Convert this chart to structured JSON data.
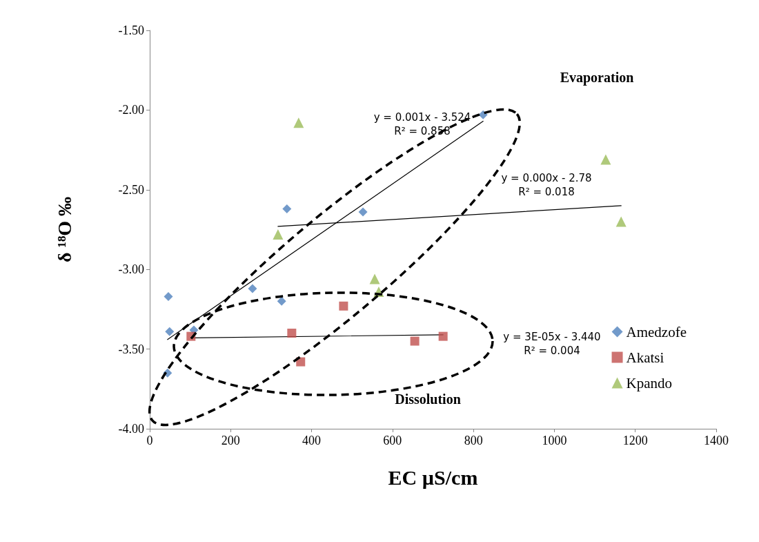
{
  "chart_data": {
    "type": "scatter",
    "xlabel": "EC µS/cm",
    "ylabel": "δ ¹⁸O ‰",
    "xlim": [
      0,
      1400
    ],
    "xticks": [
      0,
      200,
      400,
      600,
      800,
      1000,
      1200,
      1400
    ],
    "ylim": [
      -4,
      -1.5
    ],
    "yticks": [
      {
        "value": -4,
        "label": "-4.00"
      },
      {
        "value": -3.5,
        "label": "-3.50"
      },
      {
        "value": -3,
        "label": "-3.00"
      },
      {
        "value": -2.5,
        "label": "-2.50"
      },
      {
        "value": -2,
        "label": "-2.00"
      },
      {
        "value": -1.5,
        "label": "-1.50"
      }
    ],
    "grid": false,
    "legend": "right",
    "series": [
      {
        "name": "Amedzofe",
        "color": "#4f81bd",
        "marker": "diamond",
        "x": [
          46,
          49,
          109,
          254,
          326,
          339,
          527,
          824,
          44
        ],
        "values": [
          -3.17,
          -3.39,
          -3.38,
          -3.12,
          -3.2,
          -2.62,
          -2.64,
          -2.03,
          -3.65
        ]
      },
      {
        "name": "Akatsi",
        "color": "#c0504d",
        "marker": "square",
        "x": [
          102,
          351,
          373,
          479,
          655,
          725
        ],
        "values": [
          -3.42,
          -3.4,
          -3.58,
          -3.23,
          -3.45,
          -3.42
        ]
      },
      {
        "name": "Kpando",
        "color": "#9bbb59",
        "marker": "triangle",
        "x": [
          368,
          317,
          556,
          566,
          1127,
          1165
        ],
        "values": [
          -2.08,
          -2.78,
          -3.06,
          -3.14,
          -2.31,
          -2.7
        ]
      },
      {
        "type": "line",
        "color": "#000000",
        "marker": "none",
        "x": [
          44,
          824
        ],
        "values": [
          -3.44,
          -2.07
        ]
      },
      {
        "type": "line",
        "color": "#000000",
        "marker": "none",
        "x": [
          317,
          1165
        ],
        "values": [
          -2.73,
          -2.6
        ]
      },
      {
        "type": "line",
        "color": "#000000",
        "marker": "none",
        "x": [
          102,
          725
        ],
        "values": [
          -3.43,
          -3.41
        ]
      }
    ],
    "annotations": [
      "Evaporation",
      "Dissolution",
      "y = 0.001x - 3.524\nR² = 0.858",
      "y = 0.000x - 2.78\nR² = 0.018",
      "y = 3E-05x - 3.440\nR² = 0.004"
    ]
  }
}
